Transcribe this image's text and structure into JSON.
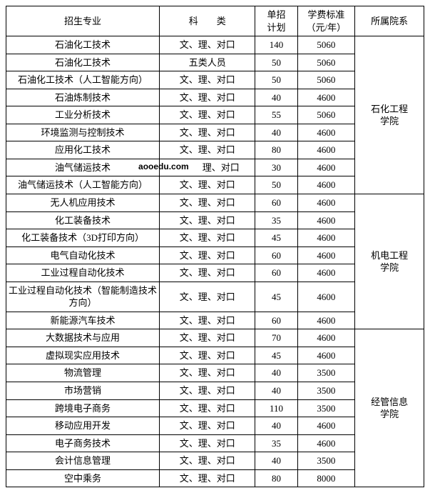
{
  "headers": {
    "major": "招生专业",
    "category": "科　　类",
    "plan": "单招\n计划",
    "tuition": "学费标准\n（元/年）",
    "department": "所属院系"
  },
  "watermark": "aooedu.com",
  "departments": [
    {
      "name": "石化工程\n学院",
      "rows": [
        {
          "major": "石油化工技术",
          "category": "文、理、对口",
          "plan": "140",
          "tuition": "5060"
        },
        {
          "major": "石油化工技术",
          "category": "五类人员",
          "plan": "50",
          "tuition": "5060"
        },
        {
          "major": "石油化工技术（人工智能方向）",
          "category": "文、理、对口",
          "plan": "50",
          "tuition": "5060"
        },
        {
          "major": "石油炼制技术",
          "category": "文、理、对口",
          "plan": "40",
          "tuition": "4600"
        },
        {
          "major": "工业分析技术",
          "category": "文、理、对口",
          "plan": "55",
          "tuition": "5060"
        },
        {
          "major": "环境监测与控制技术",
          "category": "文、理、对口",
          "plan": "40",
          "tuition": "4600"
        },
        {
          "major": "应用化工技术",
          "category": "文、理、对口",
          "plan": "80",
          "tuition": "4600"
        },
        {
          "major": "油气储运技术",
          "category": "理、对口",
          "plan": "30",
          "tuition": "4600",
          "watermark": true
        },
        {
          "major": "油气储运技术（人工智能方向）",
          "category": "文、理、对口",
          "plan": "50",
          "tuition": "4600"
        }
      ]
    },
    {
      "name": "机电工程\n学院",
      "rows": [
        {
          "major": "无人机应用技术",
          "category": "文、理、对口",
          "plan": "60",
          "tuition": "4600"
        },
        {
          "major": "化工装备技术",
          "category": "文、理、对口",
          "plan": "35",
          "tuition": "4600"
        },
        {
          "major": "化工装备技术（3D打印方向）",
          "category": "文、理、对口",
          "plan": "45",
          "tuition": "4600"
        },
        {
          "major": "电气自动化技术",
          "category": "文、理、对口",
          "plan": "60",
          "tuition": "4600"
        },
        {
          "major": "工业过程自动化技术",
          "category": "文、理、对口",
          "plan": "60",
          "tuition": "4600"
        },
        {
          "major": "工业过程自动化技术（智能制造技术方向）",
          "category": "文、理、对口",
          "plan": "45",
          "tuition": "4600"
        },
        {
          "major": "新能源汽车技术",
          "category": "文、理、对口",
          "plan": "60",
          "tuition": "4600"
        }
      ]
    },
    {
      "name": "经管信息\n学院",
      "rows": [
        {
          "major": "大数据技术与应用",
          "category": "文、理、对口",
          "plan": "70",
          "tuition": "4600"
        },
        {
          "major": "虚拟现实应用技术",
          "category": "文、理、对口",
          "plan": "45",
          "tuition": "4600"
        },
        {
          "major": "物流管理",
          "category": "文、理、对口",
          "plan": "40",
          "tuition": "3500"
        },
        {
          "major": "市场营销",
          "category": "文、理、对口",
          "plan": "40",
          "tuition": "3500"
        },
        {
          "major": "跨境电子商务",
          "category": "文、理、对口",
          "plan": "110",
          "tuition": "3500"
        },
        {
          "major": "移动应用开发",
          "category": "文、理、对口",
          "plan": "40",
          "tuition": "4600"
        },
        {
          "major": "电子商务技术",
          "category": "文、理、对口",
          "plan": "35",
          "tuition": "4600"
        },
        {
          "major": "会计信息管理",
          "category": "文、理、对口",
          "plan": "40",
          "tuition": "3500"
        },
        {
          "major": "空中乘务",
          "category": "文、理、对口",
          "plan": "80",
          "tuition": "8000"
        }
      ]
    }
  ]
}
